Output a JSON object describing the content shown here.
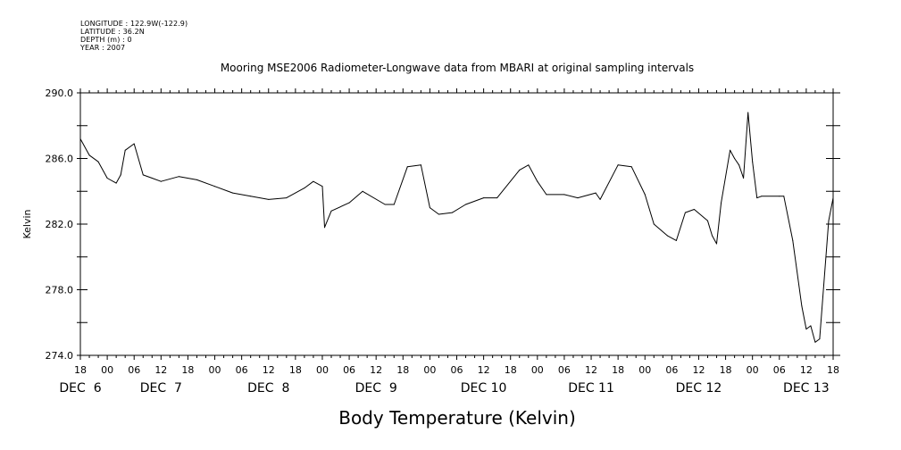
{
  "metadata": {
    "longitude": "LONGITUDE : 122.9W(-122.9)",
    "latitude": "LATITUDE : 36.2N",
    "depth": "DEPTH (m) : 0",
    "year": "YEAR : 2007"
  },
  "chart_data": {
    "type": "line",
    "title": "Mooring MSE2006 Radiometer-Longwave data from MBARI at original sampling intervals",
    "xlabel": "Body Temperature (Kelvin)",
    "ylabel": "Kelvin",
    "ylim": [
      274.0,
      290.0
    ],
    "yticks": [
      "274.0",
      "278.0",
      "282.0",
      "286.0",
      "290.0"
    ],
    "xlim": [
      "2007-12-06 18:00",
      "2007-12-13 18:00"
    ],
    "xtick_hours": [
      "18",
      "00",
      "06",
      "12",
      "18",
      "00",
      "06",
      "12",
      "18",
      "00",
      "06",
      "12",
      "18",
      "00",
      "06",
      "12",
      "18",
      "00",
      "06",
      "12",
      "18",
      "00",
      "06",
      "12",
      "18",
      "00",
      "06",
      "12",
      "18"
    ],
    "xtick_days": [
      {
        "label": "DEC  6",
        "at": "2007-12-06 18:00"
      },
      {
        "label": "DEC  7",
        "at": "2007-12-07 12:00"
      },
      {
        "label": "DEC  8",
        "at": "2007-12-08 12:00"
      },
      {
        "label": "DEC  9",
        "at": "2007-12-09 12:00"
      },
      {
        "label": "DEC 10",
        "at": "2007-12-10 12:00"
      },
      {
        "label": "DEC 11",
        "at": "2007-12-11 12:00"
      },
      {
        "label": "DEC 12",
        "at": "2007-12-12 12:00"
      },
      {
        "label": "DEC 13",
        "at": "2007-12-13 12:00"
      }
    ],
    "grid": false,
    "series": [
      {
        "x": [
          "2007-12-06 18:00",
          "2007-12-06 20:00",
          "2007-12-06 22:00",
          "2007-12-07 00:00",
          "2007-12-07 02:00",
          "2007-12-07 03:00",
          "2007-12-07 04:00",
          "2007-12-07 06:00",
          "2007-12-07 08:00",
          "2007-12-07 10:00",
          "2007-12-07 12:00",
          "2007-12-07 16:00",
          "2007-12-07 20:00",
          "2007-12-08 00:00",
          "2007-12-08 04:00",
          "2007-12-08 08:00",
          "2007-12-08 12:00",
          "2007-12-08 16:00",
          "2007-12-08 20:00",
          "2007-12-08 22:00",
          "2007-12-09 00:00",
          "2007-12-09 00:30",
          "2007-12-09 02:00",
          "2007-12-09 06:00",
          "2007-12-09 09:00",
          "2007-12-09 14:00",
          "2007-12-09 16:00",
          "2007-12-09 19:00",
          "2007-12-09 22:00",
          "2007-12-10 00:00",
          "2007-12-10 02:00",
          "2007-12-10 05:00",
          "2007-12-10 08:00",
          "2007-12-10 12:00",
          "2007-12-10 15:00",
          "2007-12-10 20:00",
          "2007-12-10 22:00",
          "2007-12-11 00:00",
          "2007-12-11 02:00",
          "2007-12-11 06:00",
          "2007-12-11 09:00",
          "2007-12-11 13:00",
          "2007-12-11 14:00",
          "2007-12-11 18:00",
          "2007-12-11 21:00",
          "2007-12-12 00:00",
          "2007-12-12 02:00",
          "2007-12-12 05:00",
          "2007-12-12 07:00",
          "2007-12-12 09:00",
          "2007-12-12 11:00",
          "2007-12-12 14:00",
          "2007-12-12 15:00",
          "2007-12-12 16:00",
          "2007-12-12 17:00",
          "2007-12-12 19:00",
          "2007-12-12 20:00",
          "2007-12-12 21:00",
          "2007-12-12 22:00",
          "2007-12-12 23:00",
          "2007-12-13 00:00",
          "2007-12-13 01:00",
          "2007-12-13 02:00",
          "2007-12-13 06:00",
          "2007-12-13 07:00",
          "2007-12-13 09:00",
          "2007-12-13 11:00",
          "2007-12-13 12:00",
          "2007-12-13 13:00",
          "2007-12-13 14:00",
          "2007-12-13 15:00",
          "2007-12-13 17:00",
          "2007-12-13 18:00"
        ],
        "y": [
          287.2,
          286.2,
          285.8,
          284.8,
          284.5,
          285.0,
          286.5,
          286.9,
          285.0,
          284.8,
          284.6,
          284.9,
          284.7,
          284.3,
          283.9,
          283.7,
          283.5,
          283.6,
          284.2,
          284.6,
          284.3,
          281.8,
          282.8,
          283.3,
          284.0,
          283.2,
          283.2,
          285.5,
          285.6,
          283.0,
          282.6,
          282.7,
          283.2,
          283.6,
          283.6,
          285.3,
          285.6,
          284.6,
          283.8,
          283.8,
          283.6,
          283.9,
          283.5,
          285.6,
          285.5,
          283.8,
          282.0,
          281.3,
          281.0,
          282.7,
          282.9,
          282.2,
          281.3,
          280.8,
          283.3,
          286.5,
          286.0,
          285.6,
          284.8,
          288.8,
          285.8,
          283.6,
          283.7,
          283.7,
          283.7,
          281.0,
          277.0,
          275.6,
          275.8,
          274.8,
          275.0,
          282.2,
          283.6
        ]
      }
    ]
  }
}
